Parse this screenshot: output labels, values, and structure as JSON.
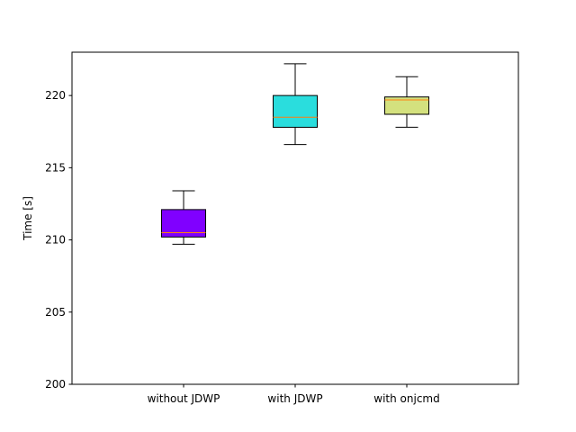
{
  "chart_data": {
    "type": "boxplot",
    "title": "",
    "xlabel": "",
    "ylabel": "Time [s]",
    "ylim": [
      200,
      223
    ],
    "yticks": [
      200,
      205,
      210,
      215,
      220
    ],
    "grid": false,
    "categories": [
      "without JDWP",
      "with JDWP",
      "with onjcmd"
    ],
    "boxes": [
      {
        "category": "without JDWP",
        "whisker_low": 209.7,
        "q1": 210.2,
        "median": 210.5,
        "q3": 212.1,
        "whisker_high": 213.4,
        "color": "#8000ff"
      },
      {
        "category": "with JDWP",
        "whisker_low": 216.6,
        "q1": 217.8,
        "median": 218.5,
        "q3": 220.0,
        "whisker_high": 222.2,
        "color": "#2adddd"
      },
      {
        "category": "with onjcmd",
        "whisker_low": 217.8,
        "q1": 218.7,
        "median": 219.7,
        "q3": 219.9,
        "whisker_high": 221.3,
        "color": "#d4e17e"
      }
    ],
    "median_color": "#ff7f0e"
  }
}
